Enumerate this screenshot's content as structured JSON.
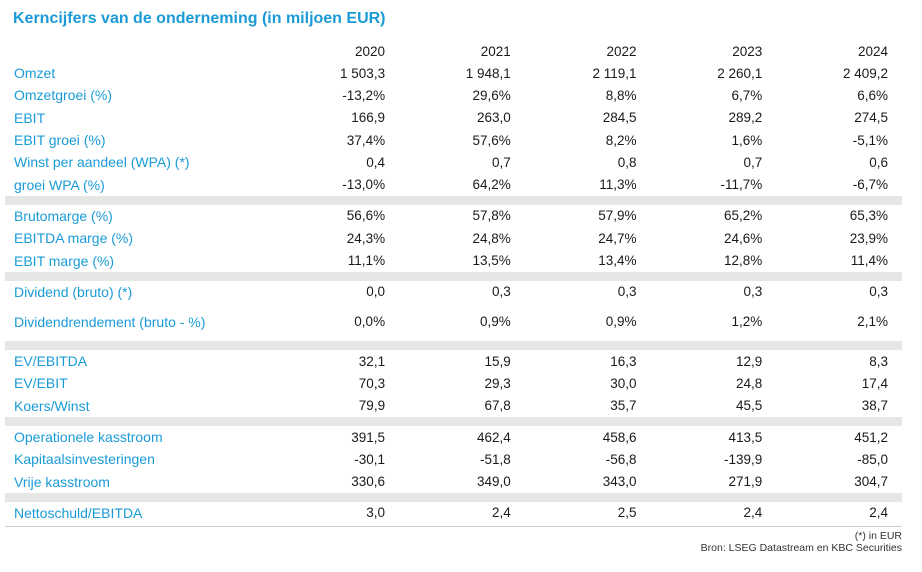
{
  "title": "Kerncijfers van de onderneming (in miljoen EUR)",
  "years": [
    "2020",
    "2021",
    "2022",
    "2023",
    "2024"
  ],
  "groups": [
    [
      {
        "label": "Omzet",
        "values": [
          "1 503,3",
          "1 948,1",
          "2 119,1",
          "2 260,1",
          "2 409,2"
        ]
      },
      {
        "label": "Omzetgroei (%)",
        "values": [
          "-13,2%",
          "29,6%",
          "8,8%",
          "6,7%",
          "6,6%"
        ]
      },
      {
        "label": "EBIT",
        "values": [
          "166,9",
          "263,0",
          "284,5",
          "289,2",
          "274,5"
        ]
      },
      {
        "label": "EBIT groei (%)",
        "values": [
          "37,4%",
          "57,6%",
          "8,2%",
          "1,6%",
          "-5,1%"
        ]
      },
      {
        "label": "Winst per aandeel (WPA) (*)",
        "values": [
          "0,4",
          "0,7",
          "0,8",
          "0,7",
          "0,6"
        ]
      },
      {
        "label": "groei WPA (%)",
        "values": [
          "-13,0%",
          "64,2%",
          "11,3%",
          "-11,7%",
          "-6,7%"
        ]
      }
    ],
    [
      {
        "label": "Brutomarge (%)",
        "values": [
          "56,6%",
          "57,8%",
          "57,9%",
          "65,2%",
          "65,3%"
        ]
      },
      {
        "label": "EBITDA marge (%)",
        "values": [
          "24,3%",
          "24,8%",
          "24,7%",
          "24,6%",
          "23,9%"
        ]
      },
      {
        "label": "EBIT marge (%)",
        "values": [
          "11,1%",
          "13,5%",
          "13,4%",
          "12,8%",
          "11,4%"
        ]
      }
    ],
    [
      {
        "label": "Dividend (bruto) (*)",
        "values": [
          "0,0",
          "0,3",
          "0,3",
          "0,3",
          "0,3"
        ]
      },
      {
        "label": "Dividendrendement (bruto - %)",
        "values": [
          "0,0%",
          "0,9%",
          "0,9%",
          "1,2%",
          "2,1%"
        ],
        "tall": true
      }
    ],
    [
      {
        "label": "EV/EBITDA",
        "values": [
          "32,1",
          "15,9",
          "16,3",
          "12,9",
          "8,3"
        ]
      },
      {
        "label": "EV/EBIT",
        "values": [
          "70,3",
          "29,3",
          "30,0",
          "24,8",
          "17,4"
        ]
      },
      {
        "label": "Koers/Winst",
        "values": [
          "79,9",
          "67,8",
          "35,7",
          "45,5",
          "38,7"
        ]
      }
    ],
    [
      {
        "label": "Operationele kasstroom",
        "values": [
          "391,5",
          "462,4",
          "458,6",
          "413,5",
          "451,2"
        ]
      },
      {
        "label": "Kapitaalsinvesteringen",
        "values": [
          "-30,1",
          "-51,8",
          "-56,8",
          "-139,9",
          "-85,0"
        ]
      },
      {
        "label": "Vrije kasstroom",
        "values": [
          "330,6",
          "349,0",
          "343,0",
          "271,9",
          "304,7"
        ]
      }
    ],
    [
      {
        "label": "Nettoschuld/EBITDA",
        "values": [
          "3,0",
          "2,4",
          "2,5",
          "2,4",
          "2,4"
        ]
      }
    ]
  ],
  "footer": {
    "note": "(*) in EUR",
    "source": "Bron: LSEG Datastream en KBC Securities"
  }
}
